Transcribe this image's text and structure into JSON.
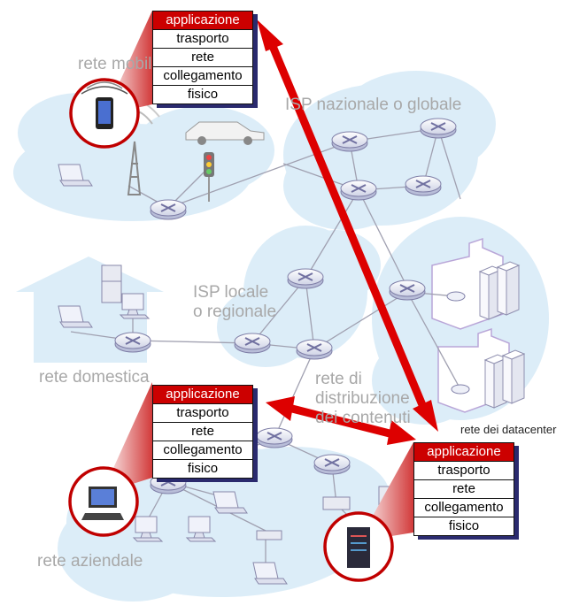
{
  "regions": {
    "mobile": "rete mobile",
    "isp_global": "ISP nazionale o globale",
    "isp_local_line1": "ISP locale",
    "isp_local_line2": "o regionale",
    "home": "rete domestica",
    "cdn_line1": "rete di",
    "cdn_line2": "distribuzione",
    "cdn_line3": "dei contenuti",
    "datacenter": "rete dei datacenter",
    "enterprise": "rete aziendale"
  },
  "protocol_stack": {
    "layers": [
      "applicazione",
      "trasporto",
      "rete",
      "collegamento",
      "fisico"
    ]
  },
  "colors": {
    "application_layer": "#cc0000",
    "arrow": "#dd0000",
    "cloud": "#dcedf8",
    "router_fill": "#eef0f8",
    "router_stroke": "#8080a8",
    "link": "#a0a0b0",
    "label_gray": "#a8a8a8"
  }
}
